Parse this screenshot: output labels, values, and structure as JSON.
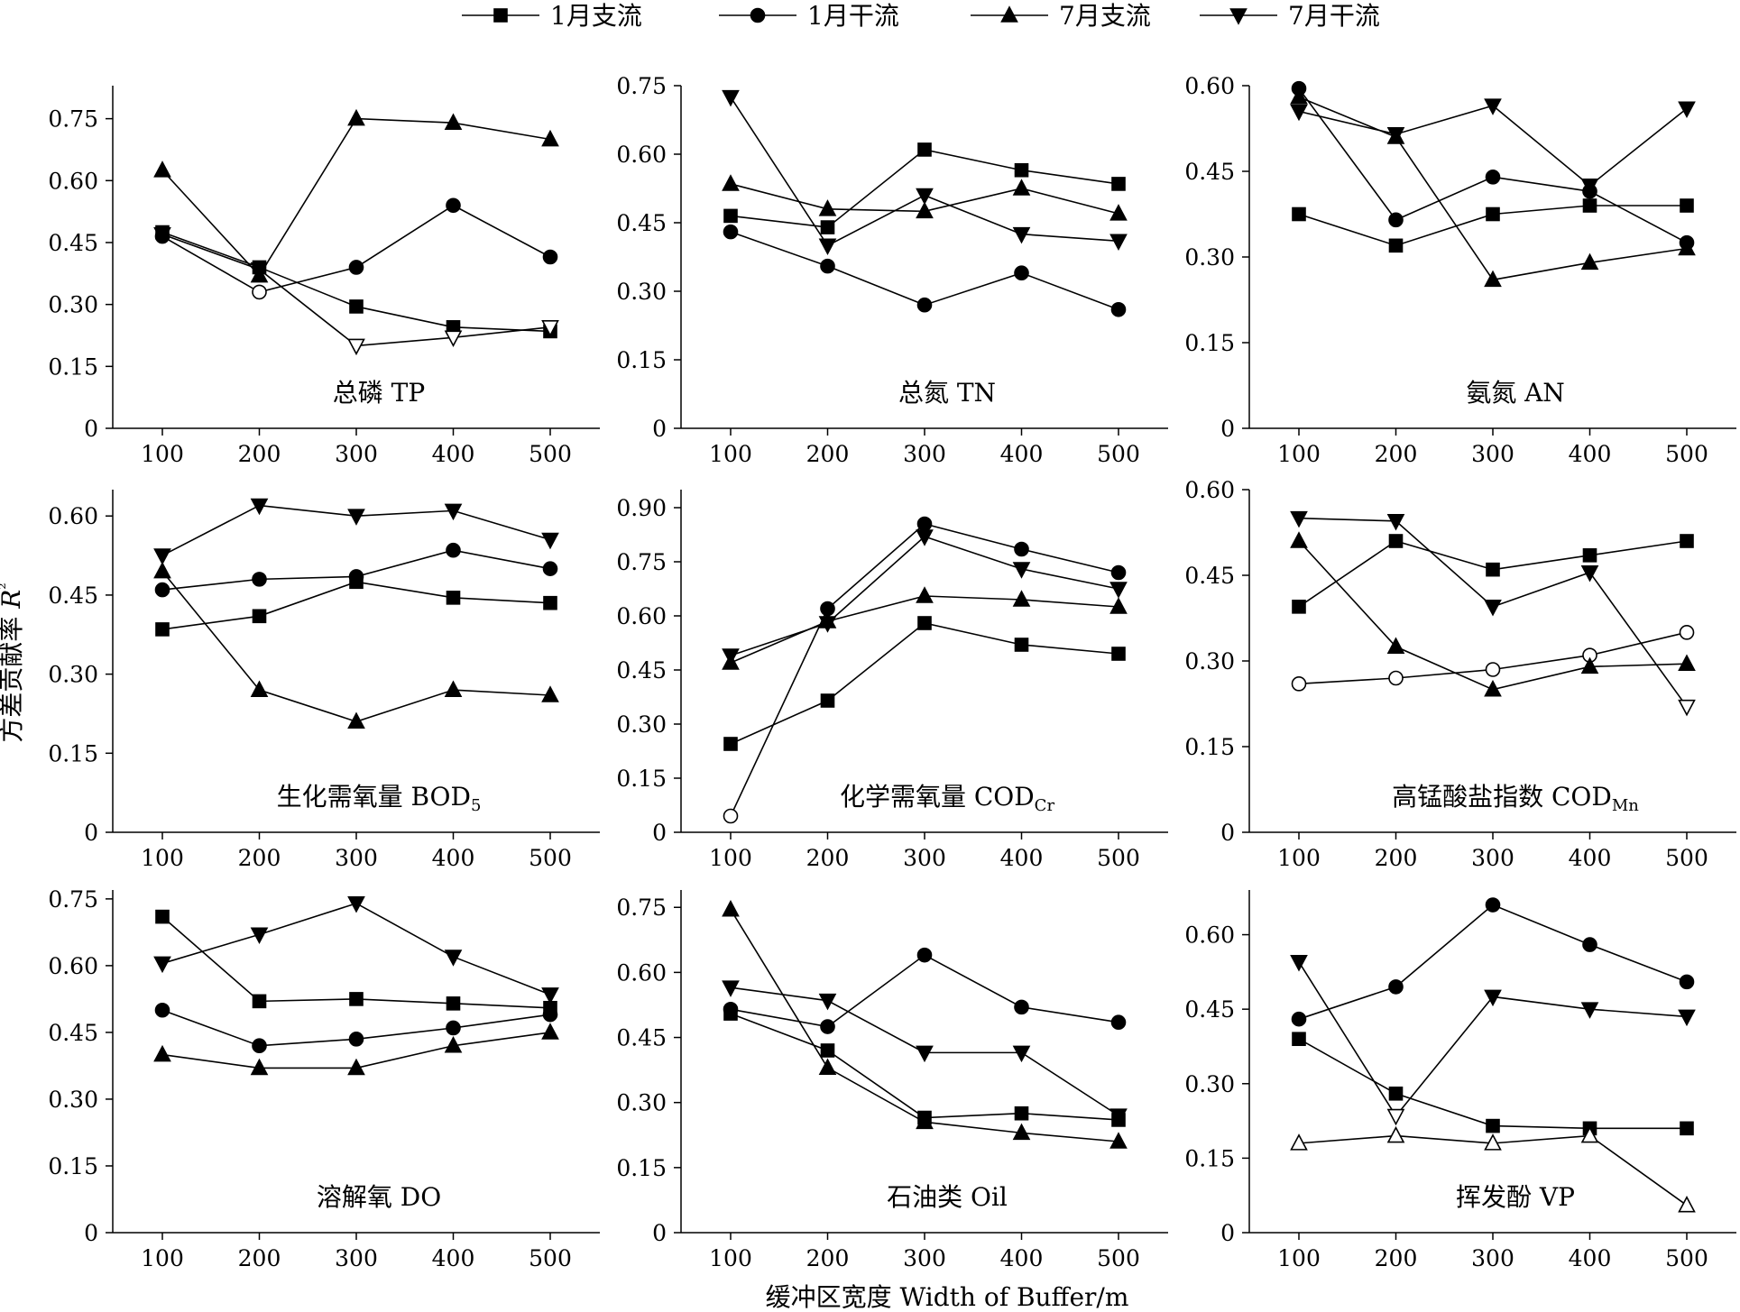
{
  "legend": [
    {
      "label": "1月支流",
      "marker": "square"
    },
    {
      "label": "1月干流",
      "marker": "circle"
    },
    {
      "label": "7月支流",
      "marker": "triangle-up"
    },
    {
      "label": "7月干流",
      "marker": "triangle-down"
    }
  ],
  "y_axis_title": "方差贡献率 R²",
  "x_axis_title": "缓冲区宽度 Width of Buffer/m",
  "chart_data": [
    {
      "type": "line",
      "title": "总磷 TP",
      "x": [
        100,
        200,
        300,
        400,
        500
      ],
      "ylim": [
        0,
        0.83
      ],
      "yticks": [
        0,
        0.15,
        0.3,
        0.45,
        0.6,
        0.75
      ],
      "series": [
        {
          "name": "1月支流",
          "marker": "square",
          "values": [
            0.475,
            0.39,
            0.295,
            0.245,
            0.235
          ],
          "hollow": [
            false,
            false,
            false,
            false,
            false
          ]
        },
        {
          "name": "1月干流",
          "marker": "circle",
          "values": [
            0.465,
            0.33,
            0.39,
            0.54,
            0.415
          ],
          "hollow": [
            false,
            true,
            false,
            false,
            false
          ]
        },
        {
          "name": "7月支流",
          "marker": "triangle-up",
          "values": [
            0.625,
            0.37,
            0.75,
            0.74,
            0.7
          ],
          "hollow": [
            false,
            false,
            false,
            false,
            false
          ]
        },
        {
          "name": "7月干流",
          "marker": "triangle-down",
          "values": [
            0.47,
            0.385,
            0.2,
            0.22,
            0.245
          ],
          "hollow": [
            false,
            false,
            true,
            true,
            true
          ]
        }
      ]
    },
    {
      "type": "line",
      "title": "总氮 TN",
      "x": [
        100,
        200,
        300,
        400,
        500
      ],
      "ylim": [
        0,
        0.75
      ],
      "yticks": [
        0,
        0.15,
        0.3,
        0.45,
        0.6,
        0.75
      ],
      "series": [
        {
          "name": "1月支流",
          "marker": "square",
          "values": [
            0.465,
            0.44,
            0.61,
            0.565,
            0.535
          ],
          "hollow": [
            false,
            false,
            false,
            false,
            false
          ]
        },
        {
          "name": "1月干流",
          "marker": "circle",
          "values": [
            0.43,
            0.355,
            0.27,
            0.34,
            0.26
          ],
          "hollow": [
            false,
            false,
            false,
            false,
            false
          ]
        },
        {
          "name": "7月支流",
          "marker": "triangle-up",
          "values": [
            0.535,
            0.48,
            0.475,
            0.525,
            0.47
          ],
          "hollow": [
            false,
            false,
            false,
            false,
            false
          ]
        },
        {
          "name": "7月干流",
          "marker": "triangle-down",
          "values": [
            0.725,
            0.4,
            0.51,
            0.425,
            0.41
          ],
          "hollow": [
            false,
            false,
            false,
            false,
            false
          ]
        }
      ]
    },
    {
      "type": "line",
      "title": "氨氮 AN",
      "x": [
        100,
        200,
        300,
        400,
        500
      ],
      "ylim": [
        0,
        0.6
      ],
      "yticks": [
        0,
        0.15,
        0.3,
        0.45,
        0.6
      ],
      "series": [
        {
          "name": "1月支流",
          "marker": "square",
          "values": [
            0.375,
            0.32,
            0.375,
            0.39,
            0.39
          ],
          "hollow": [
            false,
            false,
            false,
            false,
            false
          ]
        },
        {
          "name": "1月干流",
          "marker": "circle",
          "values": [
            0.595,
            0.365,
            0.44,
            0.415,
            0.325
          ],
          "hollow": [
            false,
            false,
            false,
            false,
            false
          ]
        },
        {
          "name": "7月支流",
          "marker": "triangle-up",
          "values": [
            0.58,
            0.51,
            0.26,
            0.29,
            0.315
          ],
          "hollow": [
            false,
            false,
            false,
            false,
            false
          ]
        },
        {
          "name": "7月干流",
          "marker": "triangle-down",
          "values": [
            0.555,
            0.515,
            0.565,
            0.425,
            0.56
          ],
          "hollow": [
            false,
            false,
            false,
            false,
            false
          ]
        }
      ]
    },
    {
      "type": "line",
      "title": "生化需氧量 BOD",
      "title_sub": "5",
      "x": [
        100,
        200,
        300,
        400,
        500
      ],
      "ylim": [
        0,
        0.65
      ],
      "yticks": [
        0,
        0.15,
        0.3,
        0.45,
        0.6
      ],
      "series": [
        {
          "name": "1月支流",
          "marker": "square",
          "values": [
            0.385,
            0.41,
            0.475,
            0.445,
            0.435
          ],
          "hollow": [
            false,
            false,
            false,
            false,
            false
          ]
        },
        {
          "name": "1月干流",
          "marker": "circle",
          "values": [
            0.46,
            0.48,
            0.485,
            0.535,
            0.5
          ],
          "hollow": [
            false,
            false,
            false,
            false,
            false
          ]
        },
        {
          "name": "7月支流",
          "marker": "triangle-up",
          "values": [
            0.495,
            0.27,
            0.21,
            0.27,
            0.26
          ],
          "hollow": [
            false,
            false,
            false,
            false,
            false
          ]
        },
        {
          "name": "7月干流",
          "marker": "triangle-down",
          "values": [
            0.525,
            0.62,
            0.6,
            0.61,
            0.555
          ],
          "hollow": [
            false,
            false,
            false,
            false,
            false
          ]
        }
      ]
    },
    {
      "type": "line",
      "title": "化学需氧量 COD",
      "title_sub": "Cr",
      "x": [
        100,
        200,
        300,
        400,
        500
      ],
      "ylim": [
        0,
        0.95
      ],
      "yticks": [
        0,
        0.15,
        0.3,
        0.45,
        0.6,
        0.75,
        0.9
      ],
      "series": [
        {
          "name": "1月支流",
          "marker": "square",
          "values": [
            0.245,
            0.365,
            0.58,
            0.52,
            0.495
          ],
          "hollow": [
            false,
            false,
            false,
            false,
            false
          ]
        },
        {
          "name": "1月干流",
          "marker": "circle",
          "values": [
            0.045,
            0.62,
            0.855,
            0.785,
            0.72
          ],
          "hollow": [
            true,
            false,
            false,
            false,
            false
          ]
        },
        {
          "name": "7月支流",
          "marker": "triangle-up",
          "values": [
            0.47,
            0.585,
            0.655,
            0.645,
            0.625
          ],
          "hollow": [
            false,
            false,
            false,
            false,
            false
          ]
        },
        {
          "name": "7月干流",
          "marker": "triangle-down",
          "values": [
            0.49,
            0.58,
            0.82,
            0.73,
            0.675
          ],
          "hollow": [
            false,
            false,
            false,
            false,
            false
          ]
        }
      ]
    },
    {
      "type": "line",
      "title": "高锰酸盐指数 COD",
      "title_sub": "Mn",
      "x": [
        100,
        200,
        300,
        400,
        500
      ],
      "ylim": [
        0,
        0.6
      ],
      "yticks": [
        0,
        0.15,
        0.3,
        0.45,
        0.6
      ],
      "series": [
        {
          "name": "1月支流",
          "marker": "square",
          "values": [
            0.395,
            0.51,
            0.46,
            0.485,
            0.51
          ],
          "hollow": [
            false,
            false,
            false,
            false,
            false
          ]
        },
        {
          "name": "1月干流",
          "marker": "circle",
          "values": [
            0.26,
            0.27,
            0.285,
            0.31,
            0.35
          ],
          "hollow": [
            true,
            true,
            true,
            true,
            true
          ]
        },
        {
          "name": "7月支流",
          "marker": "triangle-up",
          "values": [
            0.51,
            0.325,
            0.25,
            0.29,
            0.295
          ],
          "hollow": [
            false,
            false,
            false,
            false,
            false
          ]
        },
        {
          "name": "7月干流",
          "marker": "triangle-down",
          "values": [
            0.55,
            0.545,
            0.395,
            0.455,
            0.22
          ],
          "hollow": [
            false,
            false,
            false,
            false,
            true
          ]
        }
      ]
    },
    {
      "type": "line",
      "title": "溶解氧 DO",
      "x": [
        100,
        200,
        300,
        400,
        500
      ],
      "ylim": [
        0,
        0.77
      ],
      "yticks": [
        0,
        0.15,
        0.3,
        0.45,
        0.6,
        0.75
      ],
      "series": [
        {
          "name": "1月支流",
          "marker": "square",
          "values": [
            0.71,
            0.52,
            0.525,
            0.515,
            0.505
          ],
          "hollow": [
            false,
            false,
            false,
            false,
            false
          ]
        },
        {
          "name": "1月干流",
          "marker": "circle",
          "values": [
            0.5,
            0.42,
            0.435,
            0.46,
            0.49
          ],
          "hollow": [
            false,
            false,
            false,
            false,
            false
          ]
        },
        {
          "name": "7月支流",
          "marker": "triangle-up",
          "values": [
            0.4,
            0.37,
            0.37,
            0.42,
            0.45
          ],
          "hollow": [
            false,
            false,
            false,
            false,
            false
          ]
        },
        {
          "name": "7月干流",
          "marker": "triangle-down",
          "values": [
            0.605,
            0.67,
            0.74,
            0.62,
            0.535
          ],
          "hollow": [
            false,
            false,
            false,
            false,
            false
          ]
        }
      ]
    },
    {
      "type": "line",
      "title": "石油类 Oil",
      "x": [
        100,
        200,
        300,
        400,
        500
      ],
      "ylim": [
        0,
        0.79
      ],
      "yticks": [
        0,
        0.15,
        0.3,
        0.45,
        0.6,
        0.75
      ],
      "series": [
        {
          "name": "1月支流",
          "marker": "square",
          "values": [
            0.505,
            0.42,
            0.265,
            0.275,
            0.26
          ],
          "hollow": [
            false,
            false,
            false,
            false,
            false
          ]
        },
        {
          "name": "1月干流",
          "marker": "circle",
          "values": [
            0.515,
            0.475,
            0.64,
            0.52,
            0.485
          ],
          "hollow": [
            false,
            false,
            false,
            false,
            false
          ]
        },
        {
          "name": "7月支流",
          "marker": "triangle-up",
          "values": [
            0.745,
            0.38,
            0.255,
            0.23,
            0.21
          ],
          "hollow": [
            false,
            false,
            false,
            false,
            false
          ]
        },
        {
          "name": "7月干流",
          "marker": "triangle-down",
          "values": [
            0.565,
            0.535,
            0.415,
            0.415,
            0.27
          ],
          "hollow": [
            false,
            false,
            false,
            false,
            false
          ]
        }
      ]
    },
    {
      "type": "line",
      "title": "挥发酚 VP",
      "x": [
        100,
        200,
        300,
        400,
        500
      ],
      "ylim": [
        0,
        0.69
      ],
      "yticks": [
        0,
        0.15,
        0.3,
        0.45,
        0.6
      ],
      "series": [
        {
          "name": "1月支流",
          "marker": "square",
          "values": [
            0.39,
            0.28,
            0.215,
            0.21,
            0.21
          ],
          "hollow": [
            false,
            false,
            false,
            false,
            false
          ]
        },
        {
          "name": "1月干流",
          "marker": "circle",
          "values": [
            0.43,
            0.495,
            0.66,
            0.58,
            0.505
          ],
          "hollow": [
            false,
            false,
            false,
            false,
            false
          ]
        },
        {
          "name": "7月支流",
          "marker": "triangle-up",
          "values": [
            0.18,
            0.195,
            0.18,
            0.195,
            0.055
          ],
          "hollow": [
            true,
            true,
            true,
            true,
            true
          ]
        },
        {
          "name": "7月干流",
          "marker": "triangle-down",
          "values": [
            0.545,
            0.235,
            0.475,
            0.45,
            0.435
          ],
          "hollow": [
            false,
            true,
            false,
            false,
            false
          ]
        }
      ]
    }
  ]
}
